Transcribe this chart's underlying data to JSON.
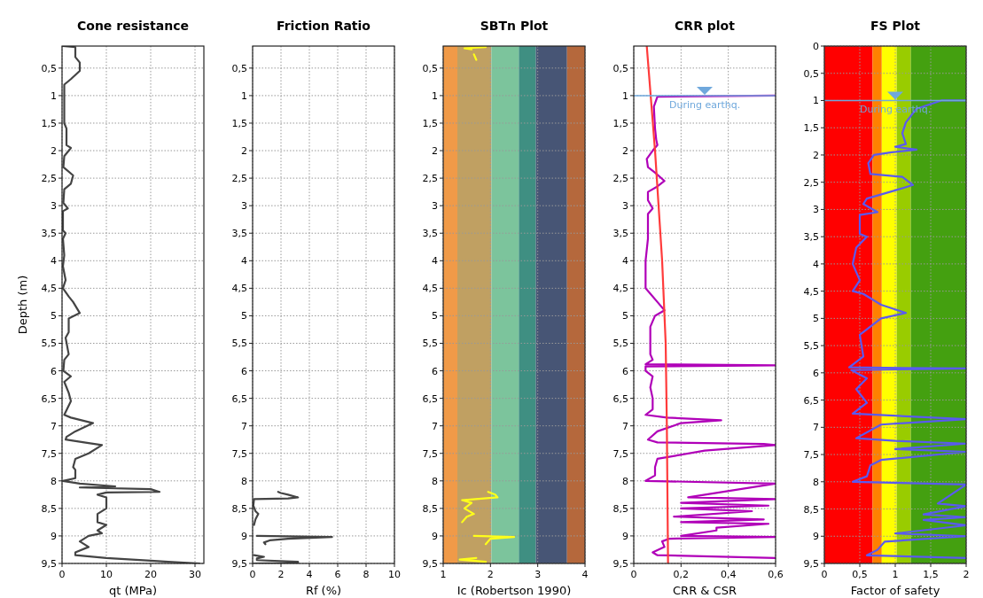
{
  "chart_data": [
    {
      "type": "line",
      "title": "Cone resistance",
      "xlabel": "qt (MPa)",
      "ylabel": "Depth (m)",
      "xlim": [
        0,
        32
      ],
      "ylim": [
        9.5,
        0.1
      ],
      "xticks": [
        0,
        10,
        20,
        30
      ],
      "yticks": [
        {
          "value": 0.5,
          "label": "0,5"
        },
        1,
        {
          "value": 1.5,
          "label": "1,5"
        },
        2,
        {
          "value": 2.5,
          "label": "2,5"
        },
        3,
        {
          "value": 3.5,
          "label": "3,5"
        },
        4,
        {
          "value": 4.5,
          "label": "4,5"
        },
        5,
        {
          "value": 5.5,
          "label": "5,5"
        },
        6,
        {
          "value": 6.5,
          "label": "6,5"
        },
        7,
        {
          "value": 7.5,
          "label": "7,5"
        },
        8,
        {
          "value": 8.5,
          "label": "8,5"
        },
        9,
        {
          "value": 9.5,
          "label": "9,5"
        }
      ],
      "grid": true,
      "series": [
        {
          "color": "#444444",
          "x": [
            0.2,
            3,
            3,
            4,
            4,
            2,
            0.5,
            0.5,
            1,
            1,
            2,
            0.5,
            0.3,
            2.5,
            2,
            0.5,
            0.3,
            1.3,
            0.2,
            0.2,
            0.8,
            0.2,
            0.5,
            0.2,
            0.8,
            0.2,
            1.5,
            2.5,
            4,
            1.5,
            1.5,
            0.8,
            1.5,
            0.5,
            0.3,
            2,
            0.5,
            1.5,
            2,
            0.5,
            2,
            7,
            3,
            1,
            0.8,
            5,
            9,
            6,
            3,
            2.5,
            3,
            3,
            0.2,
            4,
            12,
            4,
            20,
            22,
            10,
            8,
            10,
            10,
            8,
            8,
            10,
            8,
            9,
            6,
            4,
            6,
            3,
            3,
            10,
            20,
            24,
            31
          ],
          "values": [
            0.1,
            0.12,
            0.3,
            0.4,
            0.55,
            0.7,
            0.8,
            1.5,
            1.6,
            1.9,
            1.95,
            2.1,
            2.3,
            2.45,
            2.6,
            2.7,
            2.95,
            3.05,
            3.1,
            3.45,
            3.5,
            3.6,
            3.9,
            4.1,
            4.35,
            4.5,
            4.65,
            4.75,
            4.95,
            5.05,
            5.3,
            5.4,
            5.7,
            5.8,
            6.0,
            6.1,
            6.2,
            6.4,
            6.55,
            6.8,
            6.85,
            6.95,
            7.1,
            7.2,
            7.25,
            7.3,
            7.35,
            7.5,
            7.6,
            7.75,
            7.8,
            7.95,
            8.0,
            8.05,
            8.1,
            8.12,
            8.15,
            8.2,
            8.21,
            8.25,
            8.3,
            8.5,
            8.6,
            8.75,
            8.8,
            8.9,
            8.95,
            9.0,
            9.1,
            9.2,
            9.3,
            9.35,
            9.4,
            9.45,
            9.47,
            9.5
          ]
        }
      ]
    },
    {
      "type": "line",
      "title": "Friction Ratio",
      "xlabel": "Rf (%)",
      "xlim": [
        0,
        10
      ],
      "ylim": [
        9.5,
        0.1
      ],
      "xticks": [
        0,
        2,
        4,
        6,
        8,
        10
      ],
      "yticks": [
        {
          "value": 0.5,
          "label": "0,5"
        },
        1,
        {
          "value": 1.5,
          "label": "1,5"
        },
        2,
        {
          "value": 2.5,
          "label": "2,5"
        },
        3,
        {
          "value": 3.5,
          "label": "3,5"
        },
        4,
        {
          "value": 4.5,
          "label": "4,5"
        },
        5,
        {
          "value": 5.5,
          "label": "5,5"
        },
        6,
        {
          "value": 6.5,
          "label": "6,5"
        },
        7,
        {
          "value": 7.5,
          "label": "7,5"
        },
        8,
        {
          "value": 8.5,
          "label": "8,5"
        },
        9,
        {
          "value": 9.5,
          "label": "9,5"
        }
      ],
      "grid": true,
      "series": [
        {
          "color": "#444444",
          "x": [
            1.8,
            2.0,
            2.5,
            3.2,
            2.5,
            0.1,
            0.05,
            0.2,
            0.4,
            0.2,
            0.1,
            null,
            0.3,
            5.6,
            2.5,
            1.2,
            0.8,
            0.9,
            null,
            0.1,
            0.8,
            0.3,
            0.3,
            3.2,
            3.2,
            0.1
          ],
          "values": [
            8.2,
            8.22,
            8.25,
            8.3,
            8.32,
            8.33,
            8.45,
            8.55,
            8.6,
            8.7,
            8.8,
            null,
            9.0,
            9.02,
            9.05,
            9.08,
            9.12,
            9.15,
            null,
            9.35,
            9.38,
            9.41,
            9.44,
            9.47,
            9.49,
            9.5
          ]
        }
      ]
    },
    {
      "type": "line",
      "title": "SBTn Plot",
      "xlabel": "Ic (Robertson 1990)",
      "xlim": [
        1,
        4
      ],
      "ylim": [
        9.5,
        0.1
      ],
      "xticks": [
        1,
        2,
        3,
        4
      ],
      "yticks": [
        {
          "value": 0.5,
          "label": "0,5"
        },
        1,
        {
          "value": 1.5,
          "label": "1,5"
        },
        2,
        {
          "value": 2.5,
          "label": "2,5"
        },
        3,
        {
          "value": 3.5,
          "label": "3,5"
        },
        4,
        {
          "value": 4.5,
          "label": "4,5"
        },
        5,
        {
          "value": 5.5,
          "label": "5,5"
        },
        6,
        {
          "value": 6.5,
          "label": "6,5"
        },
        7,
        {
          "value": 7.5,
          "label": "7,5"
        },
        8,
        {
          "value": 8.5,
          "label": "8,5"
        },
        9,
        {
          "value": 9.5,
          "label": "9,5"
        }
      ],
      "grid": true,
      "bands": [
        {
          "axis": "x",
          "from": 1,
          "to": 1.3,
          "color": "#f09a48"
        },
        {
          "axis": "x",
          "from": 1.3,
          "to": 2.02,
          "color": "#c0a062"
        },
        {
          "axis": "x",
          "from": 2.02,
          "to": 2.6,
          "color": "#7cc49c"
        },
        {
          "axis": "x",
          "from": 2.6,
          "to": 2.96,
          "color": "#3f8f82"
        },
        {
          "axis": "x",
          "from": 2.96,
          "to": 3.62,
          "color": "#475575"
        },
        {
          "axis": "x",
          "from": 3.62,
          "to": 4,
          "color": "#b5683c"
        }
      ],
      "series": [
        {
          "color": "#ffff1a",
          "x": [
            1.9,
            1.45,
            1.6,
            null,
            1.65,
            1.7,
            null,
            1.95,
            2.1,
            2.15,
            1.4,
            1.6,
            1.45,
            1.65,
            1.5,
            1.4,
            null,
            1.65,
            2.5,
            2.0,
            1.95,
            1.9,
            null,
            1.7,
            1.35,
            1.9
          ],
          "values": [
            0.12,
            0.14,
            0.16,
            null,
            0.25,
            0.35,
            null,
            8.2,
            8.25,
            8.3,
            8.35,
            8.4,
            8.5,
            8.6,
            8.65,
            8.75,
            null,
            9.0,
            9.02,
            9.05,
            9.1,
            9.15,
            null,
            9.4,
            9.43,
            9.47
          ]
        }
      ]
    },
    {
      "type": "line",
      "title": "CRR plot",
      "xlabel": "CRR & CSR",
      "xlim": [
        0,
        0.6
      ],
      "ylim": [
        9.5,
        0.1
      ],
      "xticks": [
        0,
        {
          "value": 0.2,
          "label": "0,2"
        },
        {
          "value": 0.4,
          "label": "0,4"
        },
        {
          "value": 0.6,
          "label": "0,6"
        }
      ],
      "yticks": [
        {
          "value": 0.5,
          "label": "0,5"
        },
        1,
        {
          "value": 1.5,
          "label": "1,5"
        },
        2,
        {
          "value": 2.5,
          "label": "2,5"
        },
        3,
        {
          "value": 3.5,
          "label": "3,5"
        },
        4,
        {
          "value": 4.5,
          "label": "4,5"
        },
        5,
        {
          "value": 5.5,
          "label": "5,5"
        },
        6,
        {
          "value": 6.5,
          "label": "6,5"
        },
        7,
        {
          "value": 7.5,
          "label": "7,5"
        },
        8,
        {
          "value": 8.5,
          "label": "8,5"
        },
        9,
        {
          "value": 9.5,
          "label": "9,5"
        }
      ],
      "grid": true,
      "ref_lines": [
        {
          "axis": "y",
          "value": 1,
          "label": "During earthq.",
          "color": "#6fa8dc"
        }
      ],
      "series": [
        {
          "color": "#b000b8",
          "x": [
            0.6,
            0.1,
            0.085,
            0.09,
            0.095,
            0.1,
            0.08,
            0.055,
            0.06,
            0.09,
            0.13,
            0.1,
            0.06,
            0.06,
            0.08,
            0.06,
            0.06,
            0.05,
            0.05,
            0.07,
            0.1,
            0.13,
            0.09,
            0.07,
            0.07,
            0.08,
            0.05,
            0.6,
            0.05,
            0.05,
            0.08,
            0.07,
            0.08,
            0.08,
            0.05,
            0.14,
            0.37,
            0.2,
            0.1,
            0.06,
            0.1,
            0.55,
            0.6,
            0.3,
            0.1,
            0.09,
            0.09,
            0.05,
            0.6,
            0.23,
            0.6,
            0.2,
            0.57,
            0.2,
            0.5,
            0.17,
            0.55,
            0.2,
            0.57,
            0.35,
            0.35,
            0.2,
            0.6,
            0.15,
            0.12,
            0.13,
            0.08,
            0.1,
            0.6
          ],
          "values": [
            1.0,
            1.02,
            1.2,
            1.6,
            1.8,
            1.9,
            2.0,
            2.15,
            2.3,
            2.4,
            2.55,
            2.65,
            2.75,
            2.9,
            3.05,
            3.15,
            3.6,
            4.0,
            4.5,
            4.6,
            4.75,
            4.9,
            5.0,
            5.2,
            5.7,
            5.8,
            5.88,
            5.9,
            5.92,
            6.0,
            6.1,
            6.3,
            6.5,
            6.7,
            6.8,
            6.85,
            6.9,
            6.95,
            7.1,
            7.25,
            7.3,
            7.33,
            7.35,
            7.45,
            7.6,
            7.75,
            7.9,
            8.0,
            8.05,
            8.3,
            8.33,
            8.4,
            8.45,
            8.5,
            8.55,
            8.65,
            8.7,
            8.75,
            8.78,
            8.85,
            8.9,
            9.0,
            9.02,
            9.05,
            9.1,
            9.2,
            9.3,
            9.35,
            9.4
          ]
        },
        {
          "color": "#ff3b3b",
          "x": [
            0.055,
            0.09,
            0.12,
            0.135,
            0.14,
            0.145
          ],
          "values": [
            0.1,
            2,
            4,
            5.5,
            7,
            9.5
          ]
        }
      ]
    },
    {
      "type": "line",
      "title": "FS Plot",
      "xlabel": "Factor of safety",
      "xlim": [
        0,
        2
      ],
      "ylim": [
        9.5,
        0
      ],
      "xticks": [
        0,
        {
          "value": 0.5,
          "label": "0,5"
        },
        1,
        {
          "value": 1.5,
          "label": "1,5"
        },
        2
      ],
      "yticks": [
        0,
        {
          "value": 0.5,
          "label": "0,5"
        },
        1,
        {
          "value": 1.5,
          "label": "1,5"
        },
        2,
        {
          "value": 2.5,
          "label": "2,5"
        },
        3,
        {
          "value": 3.5,
          "label": "3,5"
        },
        4,
        {
          "value": 4.5,
          "label": "4,5"
        },
        5,
        {
          "value": 5.5,
          "label": "5,5"
        },
        6,
        {
          "value": 6.5,
          "label": "6,5"
        },
        7,
        {
          "value": 7.5,
          "label": "7,5"
        },
        8,
        {
          "value": 8.5,
          "label": "8,5"
        },
        9,
        {
          "value": 9.5,
          "label": "9,5"
        }
      ],
      "grid": true,
      "bands": [
        {
          "axis": "x",
          "from": 0,
          "to": 0.68,
          "color": "#ff0000"
        },
        {
          "axis": "x",
          "from": 0.68,
          "to": 0.81,
          "color": "#ff8000"
        },
        {
          "axis": "x",
          "from": 0.81,
          "to": 1.02,
          "color": "#ffff00"
        },
        {
          "axis": "x",
          "from": 1.02,
          "to": 1.22,
          "color": "#99cc00"
        },
        {
          "axis": "x",
          "from": 1.22,
          "to": 2,
          "color": "#44a010"
        }
      ],
      "ref_lines": [
        {
          "axis": "y",
          "value": 1,
          "label": "During earthq.",
          "color": "#6fa8dc"
        }
      ],
      "series": [
        {
          "color": "#5a5af0",
          "x": [
            2,
            1.65,
            1.3,
            1.15,
            1.1,
            1.15,
            1.0,
            1.3,
            0.95,
            0.7,
            0.62,
            0.65,
            1.1,
            1.25,
            1.0,
            0.6,
            0.55,
            0.75,
            0.5,
            0.5,
            0.6,
            0.45,
            0.4,
            0.5,
            0.4,
            0.55,
            0.8,
            1.15,
            0.8,
            0.5,
            0.55,
            0.4,
            0.35,
            2,
            0.38,
            0.6,
            0.45,
            0.6,
            0.4,
            2,
            0.8,
            0.45,
            1.0,
            2,
            1.0,
            2,
            0.8,
            0.65,
            0.6,
            0.4,
            2,
            1.6,
            2,
            1.4,
            2,
            1.4,
            2,
            1.0,
            2,
            0.85,
            0.75,
            0.6,
            2
          ],
          "values": [
            1.0,
            1.0,
            1.15,
            1.4,
            1.6,
            1.8,
            1.85,
            1.9,
            1.95,
            2.0,
            2.15,
            2.35,
            2.4,
            2.55,
            2.65,
            2.8,
            2.9,
            3.05,
            3.1,
            3.45,
            3.5,
            3.7,
            4.0,
            4.3,
            4.5,
            4.55,
            4.75,
            4.9,
            5.0,
            5.3,
            5.7,
            5.85,
            5.9,
            5.92,
            5.95,
            6.1,
            6.3,
            6.55,
            6.75,
            6.85,
            6.95,
            7.2,
            7.25,
            7.3,
            7.4,
            7.45,
            7.6,
            7.7,
            7.9,
            8.0,
            8.05,
            8.4,
            8.45,
            8.6,
            8.65,
            8.7,
            8.8,
            8.95,
            9.0,
            9.1,
            9.25,
            9.35,
            9.4
          ]
        }
      ]
    }
  ]
}
